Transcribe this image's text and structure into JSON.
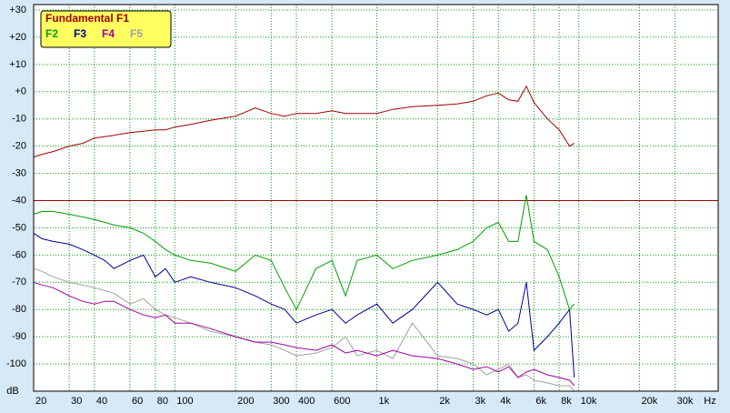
{
  "chart_data": {
    "type": "line",
    "xscale": "log",
    "grid": true,
    "legend": "top-left",
    "xlabel": "Hz",
    "ylabel": "dB",
    "xlim": [
      20,
      49000
    ],
    "ylim": [
      -110,
      32
    ],
    "xticks": [
      20,
      30,
      40,
      60,
      80,
      100,
      200,
      300,
      400,
      600,
      {
        "value": 1000,
        "label": "1k"
      },
      {
        "value": 2000,
        "label": "2k"
      },
      {
        "value": 3000,
        "label": "3k"
      },
      {
        "value": 4000,
        "label": "4k"
      },
      {
        "value": 6000,
        "label": "6k"
      },
      {
        "value": 8000,
        "label": "8k"
      },
      {
        "value": 10000,
        "label": "10k"
      },
      {
        "value": 20000,
        "label": "20k"
      },
      {
        "value": 30000,
        "label": "30k"
      }
    ],
    "yticks": [
      {
        "value": 30,
        "label": "+30"
      },
      {
        "value": 20,
        "label": "+20"
      },
      {
        "value": 10,
        "label": "+10"
      },
      {
        "value": 0,
        "label": "+0"
      },
      -10,
      -20,
      -30,
      -40,
      -50,
      -60,
      -70,
      -80,
      -90,
      -100
    ],
    "reference_line": {
      "value": -40,
      "color": "#a00000"
    },
    "x": [
      20,
      22,
      25,
      30,
      35,
      40,
      45,
      50,
      60,
      70,
      80,
      90,
      100,
      120,
      150,
      200,
      250,
      300,
      350,
      400,
      500,
      600,
      700,
      800,
      1000,
      1200,
      1500,
      2000,
      2500,
      3000,
      3500,
      4000,
      4500,
      5000,
      5500,
      6000,
      7000,
      8000,
      9000,
      9500
    ],
    "series": [
      {
        "name": "Fundamental F1",
        "color": "#a00000",
        "values": [
          -24,
          -23,
          -22,
          -20,
          -19,
          -17,
          -16.5,
          -16,
          -15,
          -14.5,
          -14,
          -14,
          -13,
          -12,
          -10.5,
          -9,
          -6,
          -8,
          -9,
          -8,
          -8,
          -7,
          -8,
          -8,
          -8,
          -6.5,
          -5.5,
          -5,
          -4.5,
          -3.5,
          -1.5,
          -0.5,
          -3,
          -3.5,
          2,
          -4,
          -10,
          -14,
          -20,
          -19
        ]
      },
      {
        "name": "F2",
        "color": "#00a000",
        "values": [
          -45,
          -44,
          -44,
          -45,
          -46,
          -47,
          -48,
          -49,
          -50,
          -52,
          -55,
          -58,
          -60,
          -62,
          -63,
          -66,
          -60,
          -62,
          -72,
          -80,
          -65,
          -62,
          -75,
          -62,
          -60,
          -65,
          -62,
          -60,
          -58,
          -55,
          -50,
          -48,
          -55,
          -55,
          -38,
          -55,
          -58,
          -68,
          -80,
          -78
        ]
      },
      {
        "name": "F3",
        "color": "#000090",
        "values": [
          -52,
          -54,
          -55,
          -56,
          -58,
          -60,
          -62,
          -65,
          -62,
          -60,
          -68,
          -65,
          -70,
          -68,
          -70,
          -72,
          -75,
          -78,
          -80,
          -85,
          -82,
          -80,
          -85,
          -82,
          -78,
          -85,
          -80,
          -70,
          -78,
          -80,
          -82,
          -80,
          -88,
          -85,
          -70,
          -95,
          -90,
          -85,
          -80,
          -105
        ]
      },
      {
        "name": "F4",
        "color": "#a000a0",
        "values": [
          -70,
          -71,
          -72,
          -75,
          -77,
          -78,
          -77,
          -77,
          -80,
          -82,
          -83,
          -82,
          -85,
          -85,
          -87,
          -90,
          -92,
          -92,
          -93,
          -94,
          -95,
          -93,
          -96,
          -95,
          -97,
          -95,
          -97,
          -98,
          -100,
          -102,
          -101,
          -103,
          -101,
          -105,
          -103,
          -102,
          -104,
          -105,
          -106,
          -108
        ]
      },
      {
        "name": "F5",
        "color": "#a0a0a0",
        "values": [
          -65,
          -66,
          -68,
          -70,
          -71,
          -72,
          -73,
          -74,
          -78,
          -76,
          -80,
          -82,
          -83,
          -85,
          -88,
          -90,
          -92,
          -93,
          -95,
          -97,
          -96,
          -94,
          -90,
          -97,
          -95,
          -98,
          -85,
          -97,
          -98,
          -100,
          -104,
          -102,
          -100,
          -105,
          -104,
          -106,
          -107,
          -108,
          -108,
          -110
        ]
      }
    ]
  }
}
